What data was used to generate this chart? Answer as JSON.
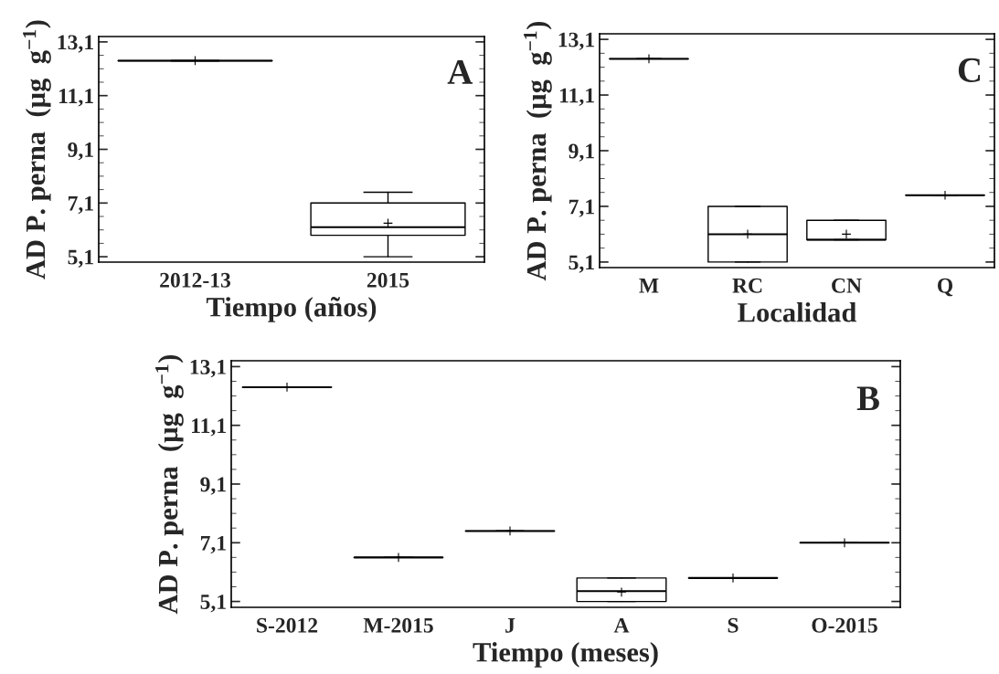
{
  "chart_data": [
    {
      "type": "box",
      "xlabel": "Tiempo (años)",
      "ylabel": "AD P. perna  (µg  g$^{−1}$)",
      "annotations": [
        "A"
      ],
      "categories": [
        "2012-13",
        "2015"
      ],
      "ylim": [
        4.9,
        13.3
      ],
      "yticks": [
        {
          "value": 5.1,
          "label": "5,1"
        },
        {
          "value": 7.1,
          "label": "7,1"
        },
        {
          "value": 9.1,
          "label": "9,1"
        },
        {
          "value": 11.1,
          "label": "11,1"
        },
        {
          "value": 13.1,
          "label": "13,1"
        }
      ],
      "grid": false,
      "boxes": [
        {
          "low": 12.4,
          "q1": 12.4,
          "median": 12.4,
          "q3": 12.4,
          "high": 12.4,
          "mean": 12.4
        },
        {
          "low": 5.1,
          "q1": 5.9,
          "median": 6.2,
          "q3": 7.1,
          "high": 7.5,
          "mean": 6.35
        }
      ]
    },
    {
      "type": "box",
      "xlabel": "Localidad",
      "ylabel": "AD P. perna  (µg  g$^{−1}$)",
      "annotations": [
        "C"
      ],
      "categories": [
        "M",
        "RC",
        "CN",
        "Q"
      ],
      "ylim": [
        4.9,
        13.3
      ],
      "yticks": [
        {
          "value": 5.1,
          "label": "5,1"
        },
        {
          "value": 7.1,
          "label": "7,1"
        },
        {
          "value": 9.1,
          "label": "9,1"
        },
        {
          "value": 11.1,
          "label": "11,1"
        },
        {
          "value": 13.1,
          "label": "13,1"
        }
      ],
      "grid": false,
      "boxes": [
        {
          "low": 12.4,
          "q1": 12.4,
          "median": 12.4,
          "q3": 12.4,
          "high": 12.4,
          "mean": 12.4
        },
        {
          "low": 5.1,
          "q1": 5.1,
          "median": 6.1,
          "q3": 7.1,
          "high": 7.1,
          "mean": 6.1
        },
        {
          "low": 5.9,
          "q1": 5.9,
          "median": 5.9,
          "q3": 6.6,
          "high": 6.6,
          "mean": 6.1
        },
        {
          "low": 7.5,
          "q1": 7.5,
          "median": 7.5,
          "q3": 7.5,
          "high": 7.5,
          "mean": 7.5
        }
      ]
    },
    {
      "type": "box",
      "xlabel": "Tiempo (meses)",
      "ylabel": "AD P. perna  (µg  g$^{−1}$)",
      "annotations": [
        "B"
      ],
      "categories": [
        "S-2012",
        "M-2015",
        "J",
        "A",
        "S",
        "O-2015"
      ],
      "ylim": [
        4.9,
        13.3
      ],
      "yticks": [
        {
          "value": 5.1,
          "label": "5,1"
        },
        {
          "value": 7.1,
          "label": "7,1"
        },
        {
          "value": 9.1,
          "label": "9,1"
        },
        {
          "value": 11.1,
          "label": "11,1"
        },
        {
          "value": 13.1,
          "label": "13,1"
        }
      ],
      "grid": false,
      "boxes": [
        {
          "low": 12.4,
          "q1": 12.4,
          "median": 12.4,
          "q3": 12.4,
          "high": 12.4,
          "mean": 12.4
        },
        {
          "low": 6.6,
          "q1": 6.6,
          "median": 6.6,
          "q3": 6.6,
          "high": 6.6,
          "mean": 6.6
        },
        {
          "low": 7.5,
          "q1": 7.5,
          "median": 7.5,
          "q3": 7.5,
          "high": 7.5,
          "mean": 7.5
        },
        {
          "low": 5.1,
          "q1": 5.1,
          "median": 5.45,
          "q3": 5.9,
          "high": 5.9,
          "mean": 5.42
        },
        {
          "low": 5.9,
          "q1": 5.9,
          "median": 5.9,
          "q3": 5.9,
          "high": 5.9,
          "mean": 5.9
        },
        {
          "low": 7.1,
          "q1": 7.1,
          "median": 7.1,
          "q3": 7.1,
          "high": 7.1,
          "mean": 7.1
        }
      ]
    }
  ]
}
